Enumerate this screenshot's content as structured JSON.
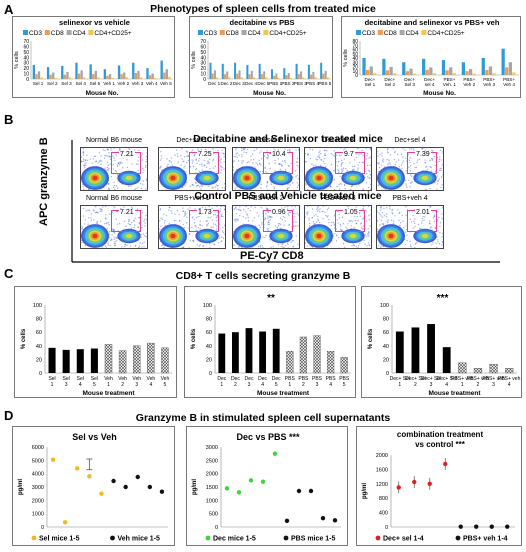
{
  "panelA": {
    "letter": "A",
    "title": "Phenotypes of spleen cells from treated mice",
    "legend": [
      "CD3",
      "CD8",
      "CD4",
      "CD4+CD25+"
    ],
    "colors": [
      "#2e9bd6",
      "#ed9a55",
      "#a6a6a6",
      "#f4c54b"
    ],
    "ylabel": "% cells",
    "xlabel": "Mouse No.",
    "yticks": [
      "0",
      "10",
      "20",
      "30",
      "40",
      "50",
      "60",
      "70"
    ],
    "yticks_right": [
      "0",
      "10",
      "20",
      "30",
      "40",
      "50",
      "60",
      "70",
      "80"
    ]
  },
  "panelB": {
    "letter": "B",
    "title_top": "Decitabine and Selinexor treated mice",
    "title_bottom": "Control PBS and Vehicle treated mice",
    "ylabel": "APC granzyme B",
    "xlabel": "PE-Cy7 CD8"
  },
  "panelC": {
    "letter": "C",
    "title": "CD8+ T cells secreting granzyme B",
    "ylabel": "% cells",
    "xlabel": "Mouse treatment",
    "yticks": [
      "0",
      "20",
      "40",
      "60",
      "80",
      "100"
    ]
  },
  "panelD": {
    "letter": "D",
    "title": "Granzyme B in stimulated spleen cell supernatants",
    "ylabel": "pg/ml"
  },
  "chart_data": [
    {
      "id": "A1",
      "type": "bar",
      "title": "selinexor vs vehicle",
      "categories": [
        "Sel 1",
        "Sel 2",
        "Sel 3",
        "Sel 4",
        "Sel 5",
        "Veh 1",
        "Veh 2",
        "Veh 3",
        "Veh 4",
        "Veh 5"
      ],
      "series": [
        {
          "name": "CD3",
          "values": [
            26,
            22,
            24,
            30,
            27,
            18,
            25,
            30,
            20,
            34
          ]
        },
        {
          "name": "CD8",
          "values": [
            9,
            8,
            8,
            10,
            9,
            6,
            9,
            11,
            7,
            12
          ]
        },
        {
          "name": "CD4",
          "values": [
            14,
            12,
            13,
            16,
            15,
            9,
            12,
            15,
            10,
            18
          ]
        },
        {
          "name": "CD4+CD25+",
          "values": [
            3,
            2,
            3,
            3,
            3,
            2,
            3,
            3,
            2,
            4
          ]
        }
      ],
      "ylim": [
        0,
        70
      ]
    },
    {
      "id": "A2",
      "type": "bar",
      "title": "decitabine vs PBS",
      "categories": [
        "Dec 1",
        "Dec 2",
        "Dec 3",
        "Dec 4",
        "Dec 5",
        "PBS 1",
        "PBS 2",
        "PBS 3",
        "PBS 4",
        "PBS 5"
      ],
      "series": [
        {
          "name": "CD3",
          "values": [
            30,
            28,
            30,
            26,
            28,
            18,
            20,
            28,
            26,
            30
          ]
        },
        {
          "name": "CD8",
          "values": [
            10,
            9,
            10,
            9,
            9,
            6,
            7,
            9,
            8,
            10
          ]
        },
        {
          "name": "CD4",
          "values": [
            16,
            14,
            16,
            15,
            14,
            10,
            11,
            14,
            13,
            15
          ]
        },
        {
          "name": "CD4+CD25+",
          "values": [
            3,
            3,
            3,
            3,
            3,
            2,
            2,
            3,
            3,
            3
          ]
        }
      ],
      "ylim": [
        0,
        70
      ]
    },
    {
      "id": "A3",
      "type": "bar",
      "title": "decitabine and selinexor vs PBS+ veh",
      "categories": [
        "Dec+ Sel 1",
        "Dec+ Sel 2",
        "Dec+ Sel 3",
        "Dec+ sel 4",
        "PBS+ Veh. 1",
        "PBS+ Veh 2",
        "PBS+ Veh 3",
        "PBS+ Veh 4"
      ],
      "series": [
        {
          "name": "CD3",
          "values": [
            40,
            38,
            30,
            38,
            35,
            30,
            40,
            62
          ]
        },
        {
          "name": "CD8",
          "values": [
            12,
            11,
            9,
            12,
            11,
            9,
            12,
            18
          ]
        },
        {
          "name": "CD4",
          "values": [
            20,
            19,
            15,
            18,
            18,
            14,
            20,
            30
          ]
        },
        {
          "name": "CD4+CD25+",
          "values": [
            4,
            4,
            3,
            4,
            4,
            3,
            4,
            6
          ]
        }
      ],
      "ylim": [
        0,
        80
      ]
    },
    {
      "id": "C1",
      "type": "bar",
      "title": "",
      "categories": [
        "Sel 1",
        "Sel 3",
        "Sel 4",
        "Sel 5",
        "Veh 1",
        "Veh 2",
        "Veh 3",
        "Veh 4",
        "Veh 5"
      ],
      "values": [
        37,
        34,
        35,
        36,
        42,
        33,
        40,
        44,
        37
      ],
      "patterns": [
        "solid",
        "solid",
        "solid",
        "solid",
        "hatch",
        "hatch",
        "hatch",
        "hatch",
        "hatch"
      ],
      "ylim": [
        0,
        100
      ]
    },
    {
      "id": "C2",
      "type": "bar",
      "title": "**",
      "categories": [
        "Dec 1",
        "Dec 2",
        "Dec 3",
        "Dec 4",
        "Dec 5",
        "PBS 1",
        "PBS 2",
        "PBS 3",
        "PBS 4",
        "PBS 5"
      ],
      "values": [
        58,
        60,
        66,
        61,
        65,
        32,
        53,
        55,
        32,
        23
      ],
      "patterns": [
        "solid",
        "solid",
        "solid",
        "solid",
        "solid",
        "hatch",
        "hatch",
        "hatch",
        "hatch",
        "hatch"
      ],
      "ylim": [
        0,
        100
      ]
    },
    {
      "id": "C3",
      "type": "bar",
      "title": "***",
      "categories": [
        "Dec+ Sel 1",
        "Dec+ Sel 2",
        "Dec+ Sel 3",
        "Dec+ Sel 4",
        "PBS+ veh 1",
        "PBS+ veh 2",
        "PBS+ veh 3",
        "PBS+ veh 4"
      ],
      "values": [
        61,
        67,
        72,
        38,
        15,
        7,
        13,
        7
      ],
      "patterns": [
        "solid",
        "solid",
        "solid",
        "solid",
        "hatch",
        "hatch",
        "hatch",
        "hatch"
      ],
      "ylim": [
        0,
        100
      ]
    },
    {
      "id": "B",
      "type": "scatter",
      "title": "",
      "top_row": [
        {
          "label": "Normal B6 mouse",
          "value": "7.21"
        },
        {
          "label": "Dec+sel 1",
          "value": "7.25"
        },
        {
          "label": "Dec+sel 2",
          "value": "10.4"
        },
        {
          "label": "Dec+sel 3",
          "value": "9.7"
        },
        {
          "label": "Dec+sel 4",
          "value": "7.39"
        }
      ],
      "bottom_row": [
        {
          "label": "Normal B6 mouse",
          "value": "7.21"
        },
        {
          "label": "PBS+veh 1",
          "value": "1.73"
        },
        {
          "label": "PBS+veh 2",
          "value": "0.96"
        },
        {
          "label": "PBS+veh 3",
          "value": "1.05"
        },
        {
          "label": "PBS+veh 4",
          "value": "2.01"
        }
      ]
    },
    {
      "id": "D1",
      "type": "scatter",
      "title": "Sel vs Veh",
      "yticks": [
        "0",
        "1000",
        "2000",
        "3000",
        "4000",
        "5000",
        "6000"
      ],
      "ylim": [
        0,
        6000
      ],
      "series": [
        {
          "name": "Sel mice 1-5",
          "color": "#f5b81a",
          "points": [
            [
              1,
              5050
            ],
            [
              2,
              350
            ],
            [
              3,
              4400
            ],
            [
              4,
              3800
            ],
            [
              5,
              2500
            ]
          ]
        },
        {
          "name": "Veh mice 1-5",
          "color": "#111111",
          "points": [
            [
              6,
              3450
            ],
            [
              7,
              3000
            ],
            [
              8,
              3750
            ],
            [
              9,
              3000
            ],
            [
              10,
              2650
            ]
          ]
        }
      ],
      "error_point": {
        "x": 4,
        "y": 4700,
        "err": 400
      }
    },
    {
      "id": "D2",
      "type": "scatter",
      "title": "Dec vs PBS ***",
      "yticks": [
        "0",
        "500",
        "1000",
        "1500",
        "2000",
        "2500",
        "3000"
      ],
      "ylim": [
        0,
        3000
      ],
      "series": [
        {
          "name": "Dec mice 1-5",
          "color": "#3bd43b",
          "points": [
            [
              1,
              1450
            ],
            [
              2,
              1300
            ],
            [
              3,
              1750
            ],
            [
              4,
              1700
            ],
            [
              5,
              2750
            ]
          ]
        },
        {
          "name": "PBS mice 1-5",
          "color": "#111111",
          "points": [
            [
              6,
              230
            ],
            [
              7,
              1350
            ],
            [
              8,
              1350
            ],
            [
              9,
              330
            ],
            [
              10,
              250
            ]
          ]
        }
      ]
    },
    {
      "id": "D3",
      "type": "scatter",
      "title": "combination treatment vs control ***",
      "yticks": [
        "0",
        "400",
        "800",
        "1200",
        "1600",
        "2000"
      ],
      "ylim": [
        0,
        2000
      ],
      "series": [
        {
          "name": "Dec+ sel 1-4",
          "color": "#e02020",
          "points": [
            [
              1,
              1100
            ],
            [
              2,
              1250
            ],
            [
              3,
              1200
            ],
            [
              4,
              1750
            ]
          ]
        },
        {
          "name": "PBS+ veh 1-4",
          "color": "#111111",
          "points": [
            [
              5,
              10
            ],
            [
              6,
              10
            ],
            [
              7,
              10
            ],
            [
              8,
              10
            ]
          ]
        }
      ]
    }
  ]
}
